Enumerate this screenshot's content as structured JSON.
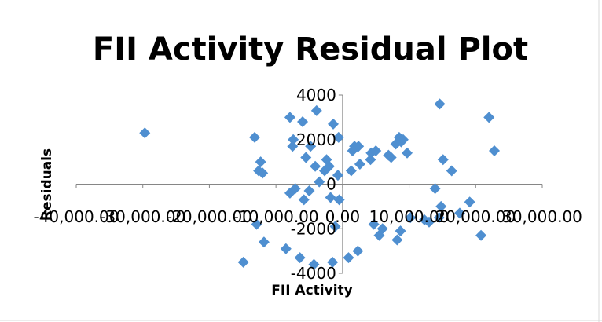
{
  "chart_data": {
    "type": "scatter",
    "title": "FII Activity Residual Plot",
    "xlabel": "FII Activity",
    "ylabel": "Residuals",
    "xlim": [
      -40000,
      30000
    ],
    "ylim": [
      -4000,
      4000
    ],
    "x_ticks": [
      -40000,
      -30000,
      -20000,
      -10000,
      0,
      10000,
      20000,
      30000
    ],
    "x_tick_labels": [
      "-40,000.00",
      "-30,000.00",
      "-20,000.00",
      "-10,000.00",
      "0.00",
      "10,000.00",
      "20,000.00",
      "30,000.00"
    ],
    "y_ticks": [
      -4000,
      -2000,
      0,
      2000,
      4000
    ],
    "y_tick_labels": [
      "-4000",
      "-2000",
      "0",
      "2000",
      "4000"
    ],
    "grid": false,
    "legend": "none",
    "marker": "diamond",
    "color": "#4f8fd0",
    "points": [
      [
        -29700,
        2300
      ],
      [
        -13200,
        2100
      ],
      [
        -14900,
        -3500
      ],
      [
        -12600,
        600
      ],
      [
        -12300,
        1000
      ],
      [
        -12000,
        500
      ],
      [
        -11800,
        -2600
      ],
      [
        -12900,
        -1800
      ],
      [
        -8500,
        -2900
      ],
      [
        -7900,
        -400
      ],
      [
        -7900,
        3000
      ],
      [
        -7500,
        1700
      ],
      [
        -7400,
        2000
      ],
      [
        -7100,
        -200
      ],
      [
        -6400,
        -3300
      ],
      [
        -6000,
        2800
      ],
      [
        -5800,
        -700
      ],
      [
        -5500,
        1200
      ],
      [
        -5000,
        -300
      ],
      [
        -4800,
        1700
      ],
      [
        -4300,
        -3600
      ],
      [
        -4100,
        800
      ],
      [
        -3900,
        3300
      ],
      [
        -3500,
        100
      ],
      [
        -2700,
        600
      ],
      [
        -2400,
        1100
      ],
      [
        -2000,
        800
      ],
      [
        -1800,
        -600
      ],
      [
        -1500,
        -3500
      ],
      [
        -1400,
        2700
      ],
      [
        -1100,
        -1900
      ],
      [
        -700,
        400
      ],
      [
        -600,
        2100
      ],
      [
        -500,
        -700
      ],
      [
        900,
        -3300
      ],
      [
        1300,
        600
      ],
      [
        1500,
        1500
      ],
      [
        1800,
        1700
      ],
      [
        2300,
        -3000
      ],
      [
        2400,
        1700
      ],
      [
        2600,
        900
      ],
      [
        4200,
        1100
      ],
      [
        4300,
        1400
      ],
      [
        4700,
        -1800
      ],
      [
        5000,
        1500
      ],
      [
        5500,
        -2300
      ],
      [
        6000,
        -2000
      ],
      [
        6900,
        1300
      ],
      [
        7300,
        1200
      ],
      [
        8000,
        1800
      ],
      [
        8200,
        -2500
      ],
      [
        8500,
        2100
      ],
      [
        8700,
        -2100
      ],
      [
        8800,
        1900
      ],
      [
        9100,
        2000
      ],
      [
        9700,
        1400
      ],
      [
        10200,
        -1500
      ],
      [
        12300,
        -1600
      ],
      [
        13000,
        -1700
      ],
      [
        13900,
        -200
      ],
      [
        14500,
        -1500
      ],
      [
        14600,
        3600
      ],
      [
        14800,
        -1000
      ],
      [
        15100,
        1100
      ],
      [
        16400,
        600
      ],
      [
        17600,
        -1300
      ],
      [
        19100,
        -800
      ],
      [
        20800,
        -2300
      ],
      [
        22000,
        3000
      ],
      [
        22800,
        1500
      ]
    ]
  }
}
